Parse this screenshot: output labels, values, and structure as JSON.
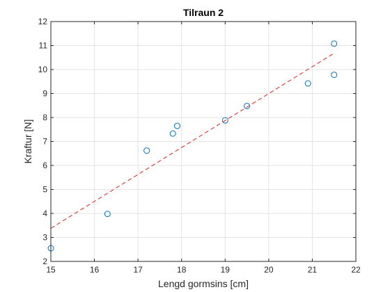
{
  "chart_data": {
    "type": "scatter",
    "title": "Tilraun 2",
    "xlabel": "Lengd gormsins [cm]",
    "ylabel": "Kraftur [N]",
    "xlim": [
      15,
      22
    ],
    "ylim": [
      2,
      12
    ],
    "xticks": [
      15,
      16,
      17,
      18,
      19,
      20,
      21,
      22
    ],
    "yticks": [
      2,
      3,
      4,
      5,
      6,
      7,
      8,
      9,
      10,
      11,
      12
    ],
    "grid": true,
    "series": [
      {
        "marker": "circle-open",
        "color": "#0072BD",
        "points": [
          [
            15.0,
            2.55
          ],
          [
            16.3,
            3.98
          ],
          [
            17.2,
            6.62
          ],
          [
            17.8,
            7.33
          ],
          [
            17.9,
            7.65
          ],
          [
            19.0,
            7.88
          ],
          [
            19.5,
            8.48
          ],
          [
            20.9,
            9.42
          ],
          [
            21.5,
            9.78
          ],
          [
            21.5,
            11.08
          ]
        ]
      },
      {
        "line_style": "dashed",
        "color": "#E0201B",
        "points": [
          [
            15.0,
            3.38
          ],
          [
            21.5,
            10.68
          ]
        ]
      }
    ]
  }
}
